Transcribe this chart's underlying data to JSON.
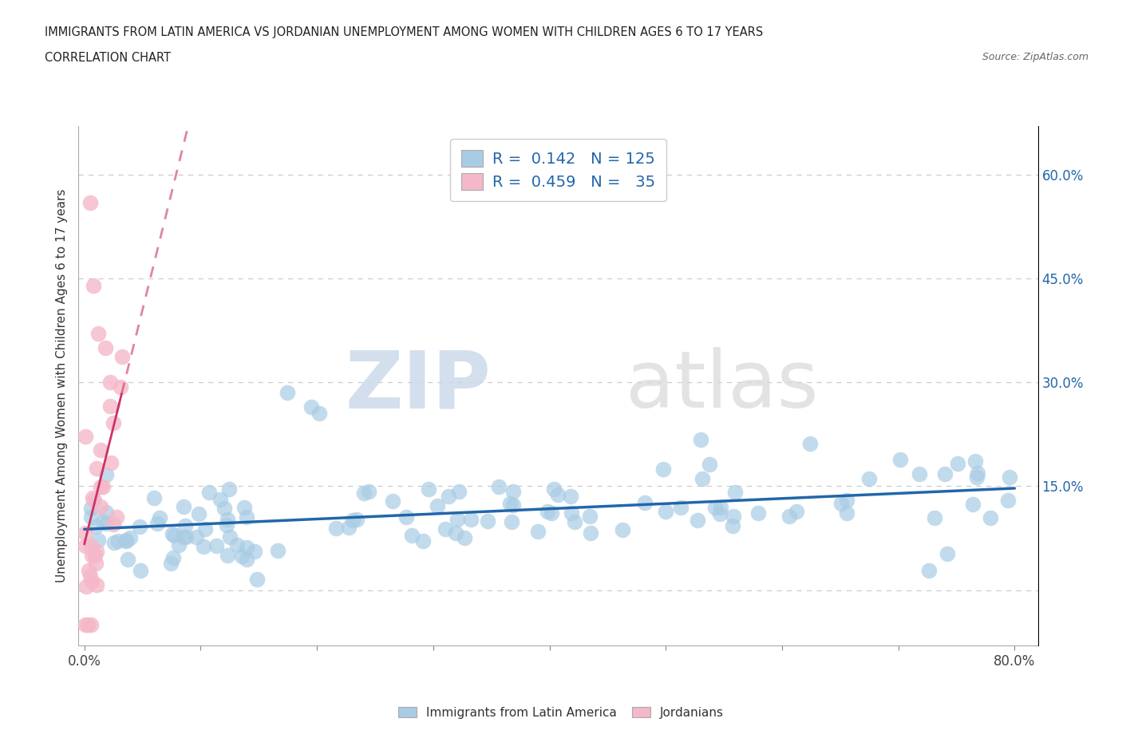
{
  "title_line1": "IMMIGRANTS FROM LATIN AMERICA VS JORDANIAN UNEMPLOYMENT AMONG WOMEN WITH CHILDREN AGES 6 TO 17 YEARS",
  "title_line2": "CORRELATION CHART",
  "source_text": "Source: ZipAtlas.com",
  "ylabel": "Unemployment Among Women with Children Ages 6 to 17 years",
  "blue_color": "#a8cce4",
  "pink_color": "#f4b8c8",
  "blue_line_color": "#2266aa",
  "pink_line_color": "#cc3366",
  "R_blue": 0.142,
  "N_blue": 125,
  "R_pink": 0.459,
  "N_pink": 35,
  "watermark_zip": "ZIP",
  "watermark_atlas": "atlas",
  "legend_label_blue": "Immigrants from Latin America",
  "legend_label_pink": "Jordanians",
  "xlim": [
    -0.005,
    0.82
  ],
  "ylim": [
    -0.08,
    0.67
  ],
  "ytick_positions": [
    0.0,
    0.15,
    0.3,
    0.45,
    0.6
  ],
  "xtick_positions": [
    0.0,
    0.1,
    0.2,
    0.3,
    0.4,
    0.5,
    0.6,
    0.7,
    0.8
  ]
}
